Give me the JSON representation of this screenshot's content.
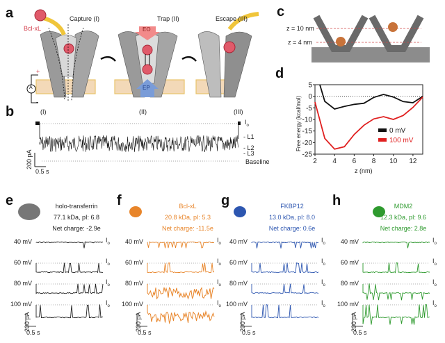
{
  "panels": {
    "a": {
      "label": "a",
      "stages": [
        "Capture (I)",
        "Trap (II)",
        "Escape (III)"
      ],
      "protein_label": "Bcl-xL",
      "eo_label": "EO",
      "ep_label": "EP",
      "ammeter_label": "A",
      "plus": "+",
      "minus": "-"
    },
    "b": {
      "label": "b",
      "stage_marks": [
        "(I)",
        "(II)",
        "(III)"
      ],
      "levels": [
        "I",
        "L1",
        "L2",
        "L3",
        "Baseline"
      ],
      "io_sub": "o",
      "scale_current": "200 pA",
      "scale_time": "0.5 s"
    },
    "c": {
      "label": "c",
      "z_labels": [
        "z = 10 nm",
        "z = 4 nm"
      ]
    },
    "d": {
      "label": "d"
    },
    "e": {
      "label": "e",
      "protein": "holo-transferrin",
      "props": "77.1 kDa, pI: 6.8",
      "charge": "Net charge: -2.9e",
      "color": "#222222",
      "voltages": [
        "40 mV",
        "60 mV",
        "80 mV",
        "100 mV"
      ],
      "scale_current": "200 pA",
      "scale_time": "0.5 s"
    },
    "f": {
      "label": "f",
      "protein": "Bcl-xL",
      "props": "20.8 kDa, pI: 5.3",
      "charge": "Net charge: -11.5e",
      "color": "#e8852a",
      "voltages": [
        "40 mV",
        "60 mV",
        "80 mV",
        "100 mV"
      ],
      "scale_current": "200 pA",
      "scale_time": "0.5 s"
    },
    "g": {
      "label": "g",
      "protein": "FKBP12",
      "props": "13.0 kDa, pI: 8.0",
      "charge": "Net charge: 0.6e",
      "color": "#2d56b0",
      "voltages": [
        "40 mV",
        "60 mV",
        "80 mV",
        "100 mV"
      ],
      "scale_current": "200 pA",
      "scale_time": "0.5 s"
    },
    "h": {
      "label": "h",
      "protein": "MDM2",
      "props": "12.3 kDa, pI: 9.6",
      "charge": "Net charge: 2.8e",
      "color": "#2e9a2e",
      "voltages": [
        "40 mV",
        "60 mV",
        "80 mV",
        "100 mV"
      ],
      "scale_current": "200 pA",
      "scale_time": "0.5 s"
    }
  },
  "io_label": "I",
  "io_sub": "o",
  "chart_data": {
    "type": "line",
    "title": "",
    "xlabel": "z (nm)",
    "ylabel": "Free energy (kcal/mol)",
    "xlim": [
      2,
      13
    ],
    "ylim": [
      -25,
      5
    ],
    "xticks": [
      2,
      4,
      6,
      8,
      10,
      12
    ],
    "yticks": [
      5,
      0,
      -5,
      -10,
      -15,
      -20,
      -25
    ],
    "reference_line": 0,
    "legend_position": "bottom-right",
    "series": [
      {
        "name": "0 mV",
        "color": "#111111",
        "x": [
          2.5,
          3,
          4,
          5,
          6,
          7,
          8,
          9,
          10,
          11,
          12,
          13
        ],
        "y": [
          5,
          -2.2,
          -5.5,
          -4.4,
          -3.5,
          -3.0,
          -0.5,
          0.8,
          -0.3,
          -2.3,
          -2.8,
          0
        ]
      },
      {
        "name": "100 mV",
        "color": "#e02020",
        "x": [
          2,
          3,
          4,
          5,
          6,
          7,
          8,
          9,
          10,
          11,
          12,
          13
        ],
        "y": [
          -2.5,
          -18.2,
          -22.8,
          -21.8,
          -16.5,
          -12.5,
          -9.8,
          -8.8,
          -10.0,
          -8.3,
          -4.8,
          -0.3
        ]
      }
    ]
  }
}
